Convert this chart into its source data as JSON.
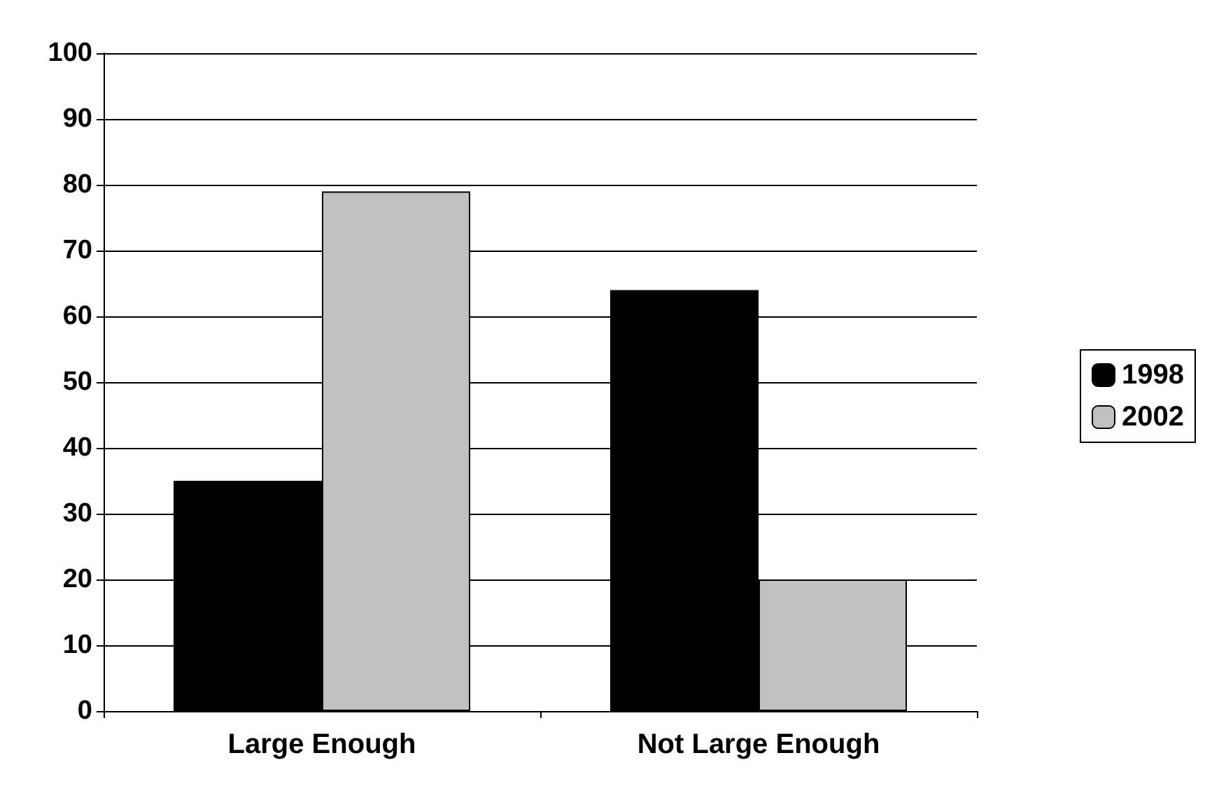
{
  "chart_data": {
    "type": "bar",
    "categories": [
      "Large Enough",
      "Not Large Enough"
    ],
    "series": [
      {
        "name": "1998",
        "color": "#000000",
        "values": [
          35,
          64
        ]
      },
      {
        "name": "2002",
        "color": "#c0c0c0",
        "values": [
          79,
          20
        ]
      }
    ],
    "ylim": [
      0,
      100
    ],
    "yticks": [
      0,
      10,
      20,
      30,
      40,
      50,
      60,
      70,
      80,
      90,
      100
    ],
    "grid": "y",
    "legend": "right"
  }
}
